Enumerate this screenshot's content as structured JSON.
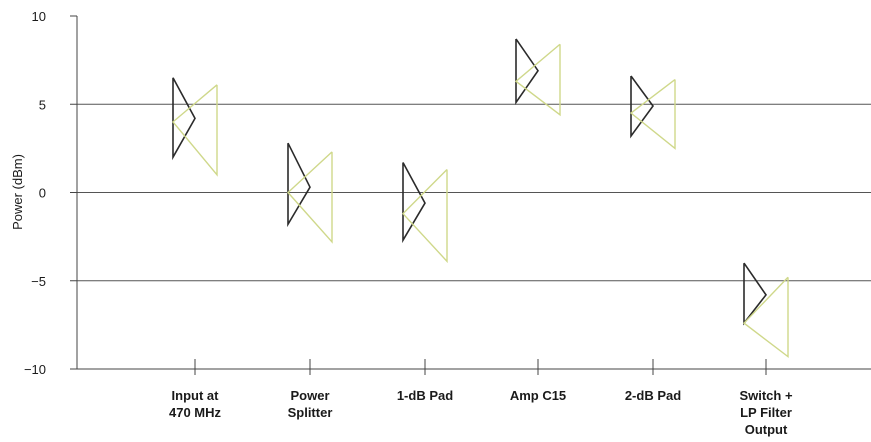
{
  "chart_data": {
    "type": "range",
    "ylabel": "Power (dBm)",
    "ylim": [
      -10,
      10
    ],
    "yticks": [
      10,
      5,
      0,
      -5,
      -10
    ],
    "ytick_labels": [
      "10",
      "5",
      "0",
      "−5",
      "−10"
    ],
    "gridlines_y": [
      5,
      0,
      -5
    ],
    "categories": [
      "Input at\n470 MHz",
      "Power\nSplitter",
      "1-dB Pad",
      "Amp C15",
      "2-dB Pad",
      "Switch +\nLP Filter\nOutput"
    ],
    "series": [
      {
        "color": "#2b2b2b",
        "values": [
          {
            "high": 6.5,
            "low": 2.0,
            "nominal": 4.2
          },
          {
            "high": 2.8,
            "low": -1.8,
            "nominal": 0.3
          },
          {
            "high": 1.7,
            "low": -2.7,
            "nominal": -0.6
          },
          {
            "high": 8.7,
            "low": 5.1,
            "nominal": 6.9
          },
          {
            "high": 6.6,
            "low": 3.2,
            "nominal": 4.9
          },
          {
            "high": -4.0,
            "low": -7.4,
            "nominal": -5.8
          }
        ]
      },
      {
        "color": "#cfd88a",
        "values": [
          {
            "high": 6.1,
            "low": 1.0,
            "nominal": 4.0
          },
          {
            "high": 2.3,
            "low": -2.8,
            "nominal": 0.0
          },
          {
            "high": 1.3,
            "low": -3.9,
            "nominal": -1.2
          },
          {
            "high": 8.4,
            "low": 4.4,
            "nominal": 6.3
          },
          {
            "high": 6.4,
            "low": 2.5,
            "nominal": 4.5
          },
          {
            "high": -4.8,
            "low": -9.3,
            "nominal": -7.4
          }
        ]
      }
    ]
  }
}
